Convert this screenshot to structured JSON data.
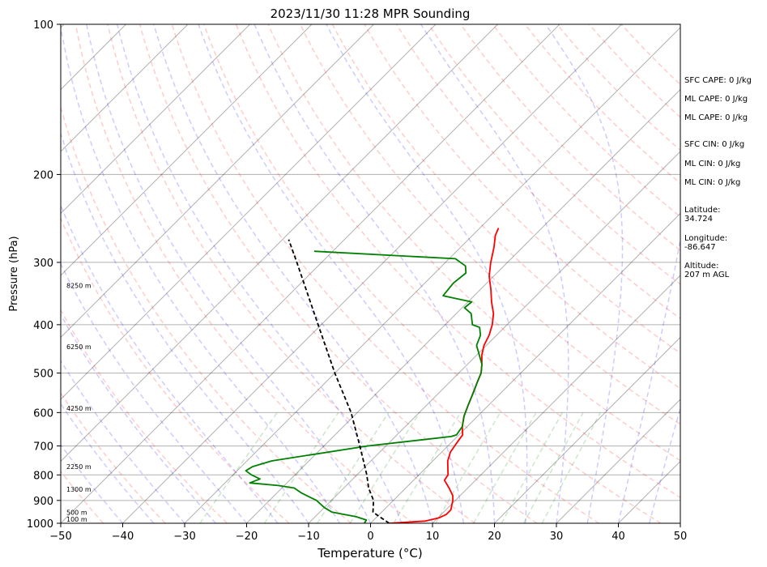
{
  "chart_data": {
    "type": "line",
    "subtype": "skew-t log-p sounding",
    "title": "2023/11/30 11:28 MPR Sounding",
    "xlabel": "Temperature (°C)",
    "ylabel": "Pressure (hPa)",
    "xlim": [
      -50,
      50
    ],
    "ylim": [
      1000,
      100
    ],
    "y_scale": "log",
    "x_ticks": [
      -50,
      -40,
      -30,
      -20,
      -10,
      0,
      10,
      20,
      30,
      40,
      50
    ],
    "x_tick_labels": [
      "−50",
      "−40",
      "−30",
      "−20",
      "−10",
      "0",
      "10",
      "20",
      "30",
      "40",
      "50"
    ],
    "y_ticks": [
      1000,
      900,
      800,
      700,
      600,
      500,
      400,
      300,
      200,
      100
    ],
    "y_tick_labels": [
      "1000",
      "900",
      "800",
      "700",
      "600",
      "500",
      "400",
      "300",
      "200",
      "100"
    ],
    "grid": "horizontal",
    "background_lines": {
      "isotherms": {
        "color": "#000000",
        "opacity": 0.3
      },
      "dry_adiabats": {
        "color": "#ff0000",
        "opacity": 0.2,
        "theta_k": [
          230,
          240,
          250,
          260,
          270,
          280,
          290,
          300,
          310,
          320,
          330,
          340,
          350,
          360,
          370,
          380,
          390,
          400,
          410,
          420,
          430,
          440,
          450
        ]
      },
      "moist_adiabats": {
        "color": "#0000ff",
        "opacity": 0.2,
        "start_temps_c": [
          -40,
          -35,
          -30,
          -25,
          -20,
          -15,
          -10,
          -5,
          0,
          5,
          10,
          15,
          20,
          25,
          30,
          35,
          40,
          45,
          50
        ]
      },
      "mixing_ratio": {
        "color": "#008000",
        "opacity": 0.2,
        "w_g_per_kg": [
          0.4,
          1,
          2,
          3,
          5,
          8,
          12,
          16,
          20,
          24
        ],
        "top_pressure": 600
      }
    },
    "series": [
      {
        "type": "temperature",
        "color": "#ff0000",
        "points": [
          [
            1000,
            3.0
          ],
          [
            990,
            8.5
          ],
          [
            975,
            10.2
          ],
          [
            960,
            10.8
          ],
          [
            940,
            10.8
          ],
          [
            920,
            10.2
          ],
          [
            900,
            9.6
          ],
          [
            880,
            8.8
          ],
          [
            850,
            7.0
          ],
          [
            820,
            5.0
          ],
          [
            800,
            4.7
          ],
          [
            780,
            3.8
          ],
          [
            750,
            2.4
          ],
          [
            720,
            1.4
          ],
          [
            700,
            1.1
          ],
          [
            680,
            0.8
          ],
          [
            665,
            0.6
          ],
          [
            640,
            -0.8
          ],
          [
            610,
            -2.2
          ],
          [
            580,
            -3.3
          ],
          [
            550,
            -4.4
          ],
          [
            520,
            -5.6
          ],
          [
            500,
            -6.4
          ],
          [
            480,
            -7.7
          ],
          [
            460,
            -9.2
          ],
          [
            440,
            -10.4
          ],
          [
            420,
            -11.2
          ],
          [
            400,
            -12.4
          ],
          [
            380,
            -14.0
          ],
          [
            360,
            -16.2
          ],
          [
            340,
            -18.3
          ],
          [
            320,
            -20.7
          ],
          [
            300,
            -22.7
          ],
          [
            280,
            -24.6
          ],
          [
            265,
            -26.3
          ],
          [
            256,
            -27.0
          ]
        ]
      },
      {
        "type": "dewpoint",
        "color": "#008000",
        "points": [
          [
            1000,
            -1.0
          ],
          [
            985,
            -1.2
          ],
          [
            970,
            -3.4
          ],
          [
            950,
            -8.0
          ],
          [
            930,
            -10.0
          ],
          [
            900,
            -12.4
          ],
          [
            870,
            -16.0
          ],
          [
            850,
            -18.0
          ],
          [
            840,
            -21.0
          ],
          [
            830,
            -26.0
          ],
          [
            815,
            -25.0
          ],
          [
            800,
            -27.0
          ],
          [
            785,
            -28.6
          ],
          [
            770,
            -28.2
          ],
          [
            750,
            -26.0
          ],
          [
            700,
            -13.0
          ],
          [
            680,
            -5.0
          ],
          [
            670,
            -1.0
          ],
          [
            665,
            -0.4
          ],
          [
            640,
            -0.8
          ],
          [
            610,
            -2.2
          ],
          [
            580,
            -3.3
          ],
          [
            550,
            -4.4
          ],
          [
            520,
            -5.6
          ],
          [
            500,
            -6.4
          ],
          [
            480,
            -7.7
          ],
          [
            460,
            -9.6
          ],
          [
            440,
            -11.6
          ],
          [
            420,
            -12.6
          ],
          [
            405,
            -14.0
          ],
          [
            400,
            -15.6
          ],
          [
            380,
            -17.6
          ],
          [
            370,
            -19.6
          ],
          [
            360,
            -19.4
          ],
          [
            350,
            -25.0
          ],
          [
            330,
            -25.4
          ],
          [
            315,
            -25.0
          ],
          [
            305,
            -26.2
          ],
          [
            295,
            -29.0
          ],
          [
            285,
            -53.0
          ]
        ]
      },
      {
        "type": "parcel",
        "color": "#000000",
        "style": "dashed",
        "points": [
          [
            1000,
            3.0
          ],
          [
            950,
            -1.4
          ],
          [
            900,
            -3.2
          ],
          [
            850,
            -6.0
          ],
          [
            800,
            -8.4
          ],
          [
            700,
            -14.2
          ],
          [
            600,
            -21.0
          ],
          [
            500,
            -30.0
          ],
          [
            400,
            -40.5
          ],
          [
            300,
            -54.0
          ],
          [
            270,
            -59.0
          ]
        ]
      }
    ],
    "height_labels": [
      {
        "p": 1000,
        "text": "100 m"
      },
      {
        "p": 965,
        "text": "500 m"
      },
      {
        "p": 867,
        "text": "1300 m"
      },
      {
        "p": 782,
        "text": "2250 m"
      },
      {
        "p": 597,
        "text": "4250 m"
      },
      {
        "p": 449,
        "text": "6250 m"
      },
      {
        "p": 339,
        "text": "8250 m"
      }
    ],
    "side_info": [
      {
        "label": "SFC CAPE: 0 J/kg"
      },
      {
        "label": "ML CAPE: 0 J/kg"
      },
      {
        "label": "ML CAPE: 0 J/kg"
      },
      {
        "label": "SFC CIN: 0 J/kg"
      },
      {
        "label": "ML CIN: 0 J/kg"
      },
      {
        "label": "ML CIN: 0 J/kg"
      },
      {
        "label": "Latitude:",
        "value": "34.724"
      },
      {
        "label": "Longitude:",
        "value": "-86.647"
      },
      {
        "label": "Altitude:",
        "value": "207 m AGL"
      }
    ]
  }
}
